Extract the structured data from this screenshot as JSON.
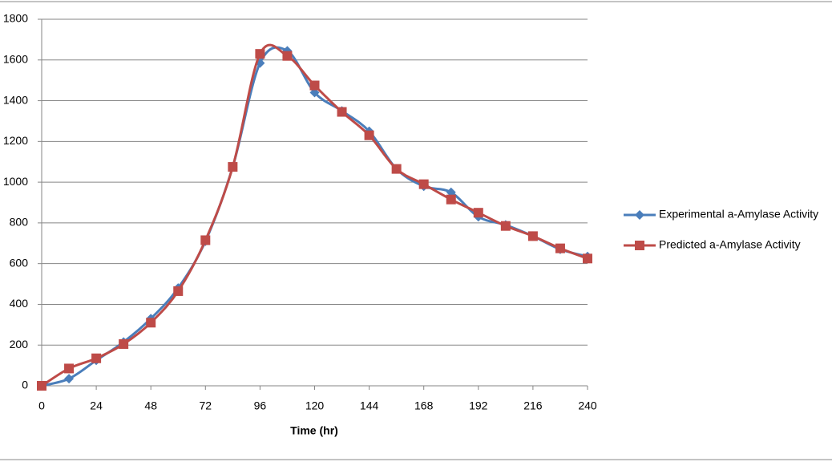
{
  "chart_data": {
    "type": "line",
    "x_label": "Time (hr)",
    "x": [
      0,
      12,
      24,
      36,
      48,
      60,
      72,
      84,
      96,
      108,
      120,
      132,
      144,
      156,
      168,
      180,
      192,
      204,
      216,
      228,
      240
    ],
    "series": [
      {
        "name": "Experimental a-Amylase Activity",
        "color": "#4a7ebb",
        "marker": "diamond",
        "values": [
          0,
          35,
          125,
          215,
          330,
          480,
          710,
          1075,
          1585,
          1645,
          1440,
          1350,
          1250,
          1065,
          980,
          950,
          830,
          790,
          735,
          670,
          635
        ]
      },
      {
        "name": "Predicted a-Amylase Activity",
        "color": "#be4b48",
        "marker": "square",
        "values": [
          0,
          85,
          135,
          205,
          310,
          465,
          715,
          1075,
          1630,
          1620,
          1475,
          1345,
          1230,
          1065,
          990,
          915,
          850,
          785,
          735,
          675,
          625
        ]
      }
    ],
    "xlim": [
      0,
      240
    ],
    "xticks": [
      0,
      24,
      48,
      72,
      96,
      120,
      144,
      168,
      192,
      216,
      240
    ],
    "ylim": [
      0,
      1800
    ],
    "yticks": [
      0,
      200,
      400,
      600,
      800,
      1000,
      1200,
      1400,
      1600,
      1800
    ],
    "grid": true,
    "legend": "right",
    "smooth": true
  }
}
